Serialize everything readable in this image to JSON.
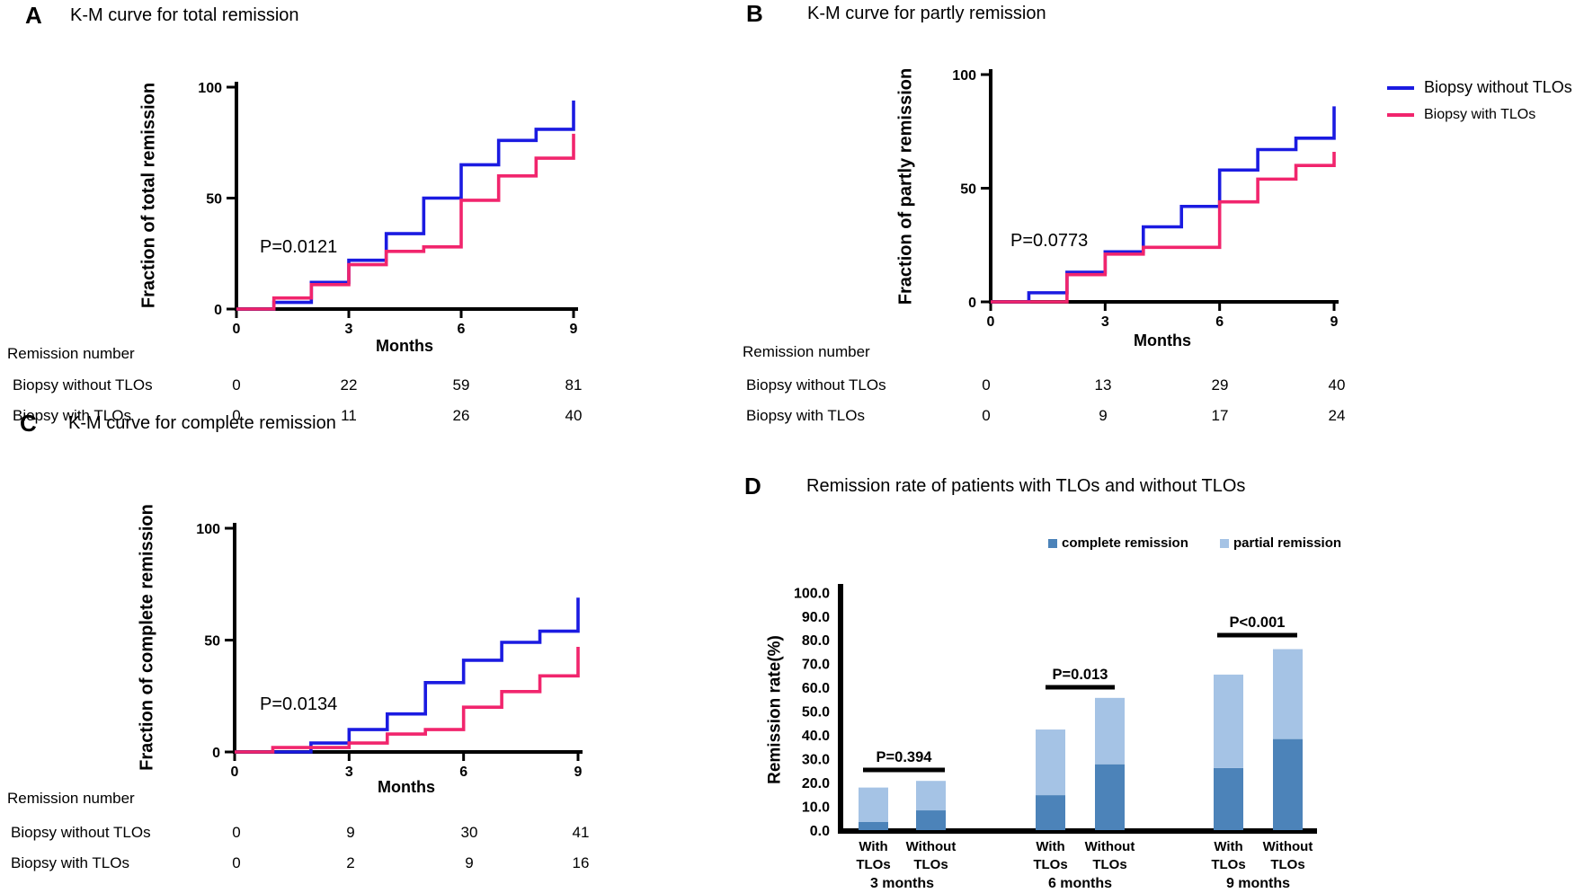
{
  "colors": {
    "km_without": "#1b1be1",
    "km_with": "#f1256d",
    "bar_complete": "#4c83b9",
    "bar_partial": "#a5c3e5"
  },
  "legend": {
    "items": [
      {
        "label": "Biopsy without TLOs",
        "color": "#1b1be1"
      },
      {
        "label": "Biopsy with TLOs",
        "color": "#f1256d"
      }
    ]
  },
  "chart_data": [
    {
      "id": "A",
      "type": "line",
      "subtype": "kaplan-meier-step",
      "panel_label": "A",
      "title": "K-M curve for total remission",
      "xlabel": "Months",
      "ylabel": "Fraction of total remission",
      "p_value": "P=0.0121",
      "xlim": [
        0,
        9
      ],
      "ylim": [
        0,
        100
      ],
      "x_ticks": [
        0,
        3,
        6,
        9
      ],
      "y_ticks": [
        0,
        50,
        100
      ],
      "series": [
        {
          "name": "Biopsy without TLOs",
          "color": "#1b1be1",
          "steps": [
            [
              0,
              0
            ],
            [
              1,
              3
            ],
            [
              2,
              12
            ],
            [
              3,
              22
            ],
            [
              4,
              34
            ],
            [
              5,
              50
            ],
            [
              6,
              65
            ],
            [
              7,
              76
            ],
            [
              8,
              81
            ],
            [
              9,
              94
            ]
          ]
        },
        {
          "name": "Biopsy with TLOs",
          "color": "#f1256d",
          "steps": [
            [
              0,
              0
            ],
            [
              1,
              5
            ],
            [
              2,
              11
            ],
            [
              3,
              20
            ],
            [
              4,
              26
            ],
            [
              5,
              28
            ],
            [
              6,
              49
            ],
            [
              7,
              60
            ],
            [
              8,
              68
            ],
            [
              9,
              79
            ]
          ]
        }
      ],
      "table": {
        "header": "Remission number",
        "columns": [
          0,
          3,
          6,
          9
        ],
        "rows": [
          {
            "label": "Biopsy without TLOs",
            "values": [
              "0",
              "22",
              "59",
              "81"
            ]
          },
          {
            "label": "Biopsy with TLOs",
            "values": [
              "0",
              "11",
              "26",
              "40"
            ]
          }
        ]
      }
    },
    {
      "id": "B",
      "type": "line",
      "subtype": "kaplan-meier-step",
      "panel_label": "B",
      "title": "K-M curve for partly remission",
      "xlabel": "Months",
      "ylabel": "Fraction of partly remission",
      "p_value": "P=0.0773",
      "xlim": [
        0,
        9
      ],
      "ylim": [
        0,
        100
      ],
      "x_ticks": [
        0,
        3,
        6,
        9
      ],
      "y_ticks": [
        0,
        50,
        100
      ],
      "series": [
        {
          "name": "Biopsy without TLOs",
          "color": "#1b1be1",
          "steps": [
            [
              0,
              0
            ],
            [
              1,
              4
            ],
            [
              2,
              13
            ],
            [
              3,
              22
            ],
            [
              4,
              33
            ],
            [
              5,
              42
            ],
            [
              6,
              58
            ],
            [
              7,
              67
            ],
            [
              8,
              72
            ],
            [
              9,
              86
            ]
          ]
        },
        {
          "name": "Biopsy with TLOs",
          "color": "#f1256d",
          "steps": [
            [
              0,
              0
            ],
            [
              2,
              12
            ],
            [
              3,
              21
            ],
            [
              4,
              24
            ],
            [
              6,
              44
            ],
            [
              7,
              54
            ],
            [
              8,
              60
            ],
            [
              9,
              66
            ]
          ]
        }
      ],
      "table": {
        "header": "Remission number",
        "columns": [
          0,
          3,
          6,
          9
        ],
        "rows": [
          {
            "label": "Biopsy without TLOs",
            "values": [
              "0",
              "13",
              "29",
              "40"
            ]
          },
          {
            "label": "Biopsy with TLOs",
            "values": [
              "0",
              "9",
              "17",
              "24"
            ]
          }
        ]
      }
    },
    {
      "id": "C",
      "type": "line",
      "subtype": "kaplan-meier-step",
      "panel_label": "C",
      "title": "K-M curve for complete remission",
      "xlabel": "Months",
      "ylabel": "Fraction of complete remission",
      "p_value": "P=0.0134",
      "xlim": [
        0,
        9
      ],
      "ylim": [
        0,
        100
      ],
      "x_ticks": [
        0,
        3,
        6,
        9
      ],
      "y_ticks": [
        0,
        50,
        100
      ],
      "series": [
        {
          "name": "Biopsy without TLOs",
          "color": "#1b1be1",
          "steps": [
            [
              0,
              0
            ],
            [
              2,
              4
            ],
            [
              3,
              10
            ],
            [
              4,
              17
            ],
            [
              5,
              31
            ],
            [
              6,
              41
            ],
            [
              7,
              49
            ],
            [
              8,
              54
            ],
            [
              9,
              69
            ]
          ]
        },
        {
          "name": "Biopsy with TLOs",
          "color": "#f1256d",
          "steps": [
            [
              0,
              0
            ],
            [
              1,
              2
            ],
            [
              3,
              4
            ],
            [
              4,
              8
            ],
            [
              5,
              10
            ],
            [
              6,
              20
            ],
            [
              7,
              27
            ],
            [
              8,
              34
            ],
            [
              9,
              47
            ]
          ]
        }
      ],
      "table": {
        "header": "Remission number",
        "columns": [
          0,
          3,
          6,
          9
        ],
        "rows": [
          {
            "label": "Biopsy without TLOs",
            "values": [
              "0",
              "9",
              "30",
              "41"
            ]
          },
          {
            "label": "Biopsy with TLOs",
            "values": [
              "0",
              "2",
              "9",
              "16"
            ]
          }
        ]
      }
    },
    {
      "id": "D",
      "type": "bar",
      "stacked": true,
      "panel_label": "D",
      "title": "Remission rate of patients with TLOs and without TLOs",
      "ylabel": "Remission rate(%)",
      "ylim": [
        0,
        100
      ],
      "y_tick_labels": [
        "0.0",
        "10.0",
        "20.0",
        "30.0",
        "40.0",
        "50.0",
        "60.0",
        "70.0",
        "80.0",
        "90.0",
        "100.0"
      ],
      "legend": [
        {
          "label": "complete remission",
          "color": "#4c83b9"
        },
        {
          "label": "partial remission",
          "color": "#a5c3e5"
        }
      ],
      "groups": [
        {
          "label": "3 months",
          "p_label": "P=0.394",
          "bars": [
            {
              "label": "With TLOs",
              "complete": 3.4,
              "partial": 14.5
            },
            {
              "label": "Without TLOs",
              "complete": 8.3,
              "partial": 12.4
            }
          ]
        },
        {
          "label": "6 months",
          "p_label": "P=0.013",
          "bars": [
            {
              "label": "With TLOs",
              "complete": 14.7,
              "partial": 27.6
            },
            {
              "label": "Without TLOs",
              "complete": 27.7,
              "partial": 27.9
            }
          ]
        },
        {
          "label": "9 months",
          "p_label": "P<0.001",
          "bars": [
            {
              "label": "With TLOs",
              "complete": 26.1,
              "partial": 39.3
            },
            {
              "label": "Without TLOs",
              "complete": 38.3,
              "partial": 37.8
            }
          ]
        }
      ]
    }
  ]
}
